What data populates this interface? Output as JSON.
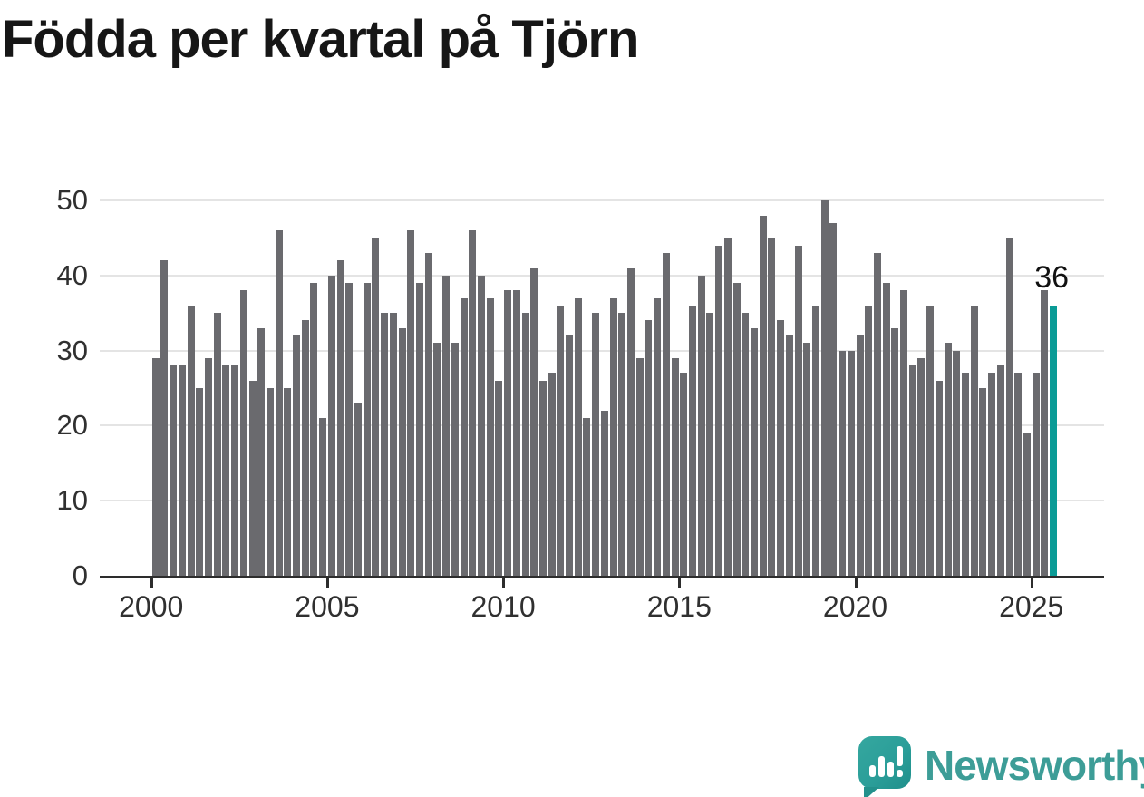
{
  "title": "Födda per kvartal på Tjörn",
  "watermark": {
    "brand": "Newsworthy"
  },
  "chart_data": {
    "type": "bar",
    "title": "Födda per kvartal på Tjörn",
    "xlabel": "",
    "ylabel": "",
    "ylim": [
      0,
      50
    ],
    "grid": true,
    "legend": "none",
    "x_unit": "quarter",
    "x_range": "2000 Q1 - 2025 Q3",
    "x_tick_labels": [
      "2000",
      "2005",
      "2010",
      "2015",
      "2020",
      "2025"
    ],
    "y_tick_labels": [
      "0",
      "10",
      "20",
      "30",
      "40",
      "50"
    ],
    "y_tick_values": [
      0,
      10,
      20,
      30,
      40,
      50
    ],
    "bar_color": "#6a6a6e",
    "highlight_color": "#0a9b96",
    "highlight_index": 102,
    "highlight_value": 36,
    "annotation": "36",
    "years": [
      {
        "year": 2000,
        "values": [
          29,
          42,
          28,
          28
        ]
      },
      {
        "year": 2001,
        "values": [
          36,
          25,
          29,
          35
        ]
      },
      {
        "year": 2002,
        "values": [
          28,
          28,
          38,
          26
        ]
      },
      {
        "year": 2003,
        "values": [
          33,
          25,
          46,
          25
        ]
      },
      {
        "year": 2004,
        "values": [
          32,
          34,
          39,
          21
        ]
      },
      {
        "year": 2005,
        "values": [
          40,
          42,
          39,
          23
        ]
      },
      {
        "year": 2006,
        "values": [
          39,
          45,
          35,
          35
        ]
      },
      {
        "year": 2007,
        "values": [
          33,
          46,
          39,
          43
        ]
      },
      {
        "year": 2008,
        "values": [
          31,
          40,
          31,
          37
        ]
      },
      {
        "year": 2009,
        "values": [
          46,
          40,
          37,
          26
        ]
      },
      {
        "year": 2010,
        "values": [
          38,
          38,
          35,
          41
        ]
      },
      {
        "year": 2011,
        "values": [
          26,
          27,
          36,
          32
        ]
      },
      {
        "year": 2012,
        "values": [
          37,
          21,
          35,
          22
        ]
      },
      {
        "year": 2013,
        "values": [
          37,
          35,
          41,
          29
        ]
      },
      {
        "year": 2014,
        "values": [
          34,
          37,
          43,
          29
        ]
      },
      {
        "year": 2015,
        "values": [
          27,
          36,
          40,
          35
        ]
      },
      {
        "year": 2016,
        "values": [
          44,
          45,
          39,
          35
        ]
      },
      {
        "year": 2017,
        "values": [
          33,
          48,
          45,
          34
        ]
      },
      {
        "year": 2018,
        "values": [
          32,
          44,
          31,
          36
        ]
      },
      {
        "year": 2019,
        "values": [
          50,
          47,
          30,
          30
        ]
      },
      {
        "year": 2020,
        "values": [
          32,
          36,
          43,
          39
        ]
      },
      {
        "year": 2021,
        "values": [
          33,
          38,
          28,
          29
        ]
      },
      {
        "year": 2022,
        "values": [
          36,
          26,
          31,
          30
        ]
      },
      {
        "year": 2023,
        "values": [
          27,
          36,
          25,
          27
        ]
      },
      {
        "year": 2024,
        "values": [
          28,
          45,
          27,
          19
        ]
      },
      {
        "year": 2025,
        "values": [
          27,
          38,
          36
        ]
      }
    ]
  }
}
